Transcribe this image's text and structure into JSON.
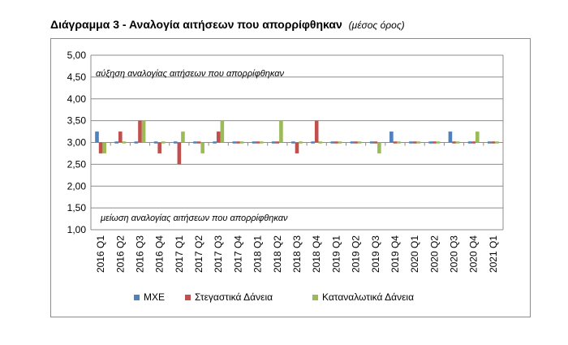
{
  "title": "Διάγραμμα 3 - Αναλογία αιτήσεων που απορρίφθηκαν",
  "subtitle": "(μέσος όρος)",
  "chart_data": {
    "type": "bar",
    "baseline": 3.0,
    "ylim": [
      1.0,
      5.0
    ],
    "yticks": [
      "1,00",
      "1,50",
      "2,00",
      "2,50",
      "3,00",
      "3,50",
      "4,00",
      "4,50",
      "5,00"
    ],
    "ytick_values": [
      1.0,
      1.5,
      2.0,
      2.5,
      3.0,
      3.5,
      4.0,
      4.5,
      5.0
    ],
    "grid": true,
    "legend_position": "bottom",
    "categories": [
      "2016 Q1",
      "2016 Q2",
      "2016 Q3",
      "2016 Q4",
      "2017 Q1",
      "2017 Q2",
      "2017 Q3",
      "2017 Q4",
      "2018 Q1",
      "2018 Q2",
      "2018 Q3",
      "2018 Q4",
      "2019 Q1",
      "2019 Q2",
      "2019 Q3",
      "2019 Q4",
      "2020 Q1",
      "2020 Q2",
      "2020 Q3",
      "2020 Q4",
      "2021 Q1"
    ],
    "series": [
      {
        "name": "ΜΧΕ",
        "color": "#4f81bd",
        "values": [
          3.25,
          3.0,
          3.0,
          3.0,
          3.0,
          3.0,
          3.0,
          3.0,
          3.0,
          3.0,
          3.0,
          3.0,
          3.0,
          3.0,
          3.0,
          3.25,
          3.0,
          3.0,
          3.25,
          3.0,
          3.0
        ]
      },
      {
        "name": "Στεγαστικά Δάνεια",
        "color": "#c0504d",
        "values": [
          2.75,
          3.25,
          3.5,
          2.75,
          2.5,
          3.0,
          3.25,
          3.0,
          3.0,
          3.0,
          2.75,
          3.5,
          3.0,
          3.0,
          3.0,
          3.0,
          3.0,
          3.0,
          3.0,
          3.0,
          3.0
        ]
      },
      {
        "name": "Καταναλωτικά Δάνεια",
        "color": "#9bbb59",
        "values": [
          2.75,
          3.0,
          3.5,
          3.0,
          3.25,
          2.75,
          3.5,
          3.0,
          3.0,
          3.5,
          3.0,
          3.0,
          3.0,
          3.0,
          2.75,
          3.0,
          3.0,
          3.0,
          3.0,
          3.25,
          3.0
        ]
      }
    ],
    "annotations": {
      "upper": "αύξηση αναλογίας αιτήσεων που απορρίφθηκαν",
      "lower": "μείωση αναλογίας αιτήσεων που απορρίφθηκαν"
    }
  }
}
